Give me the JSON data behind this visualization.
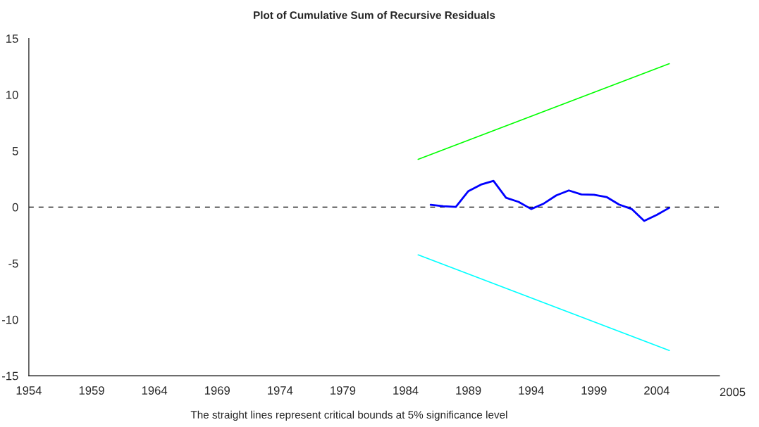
{
  "chart_data": {
    "type": "line",
    "title": "Plot of Cumulative Sum of Recursive Residuals",
    "annotations": [
      "The straight lines represent critical bounds at 5% significance level",
      "2005"
    ],
    "series": [
      {
        "color": "#0000ff",
        "x": [
          1986,
          1987,
          1988,
          1989,
          1990,
          1991,
          1992,
          1993,
          1994,
          1995,
          1996,
          1997,
          1998,
          1999,
          2000,
          2001,
          2002,
          2003,
          2004,
          2005
        ],
        "values": [
          0.21,
          0.08,
          0.02,
          1.42,
          2.0,
          2.33,
          0.83,
          0.46,
          -0.17,
          0.31,
          1.04,
          1.48,
          1.13,
          1.1,
          0.9,
          0.23,
          -0.17,
          -1.23,
          -0.69,
          -0.06
        ]
      },
      {
        "color": "#00ff00",
        "x": [
          1985,
          2005
        ],
        "values": [
          4.25,
          12.75
        ]
      },
      {
        "color": "#00ffff",
        "x": [
          1985,
          2005
        ],
        "values": [
          -4.25,
          -12.75
        ]
      }
    ],
    "ref_lines": [
      {
        "axis": "y",
        "value": 0,
        "color": "#000000",
        "line_style": "dashed"
      }
    ],
    "xlim": [
      1954,
      2009
    ],
    "xticks": [
      1954,
      1959,
      1964,
      1969,
      1974,
      1979,
      1984,
      1989,
      1994,
      1999,
      2004
    ],
    "ylim": [
      -15,
      15
    ],
    "yticks": [
      -15,
      -10,
      -5,
      0,
      5,
      10,
      15
    ],
    "grid": false,
    "legend": false,
    "marker": "none",
    "line_style": "solid"
  }
}
